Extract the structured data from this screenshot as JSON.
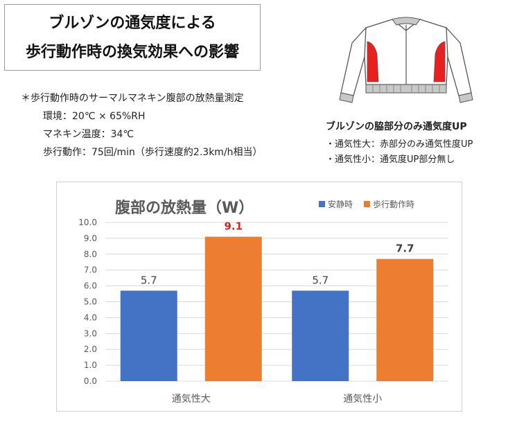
{
  "header": {
    "title_line1": "ブルゾンの通気度による",
    "title_line2": "歩行動作時の換気効果への影響"
  },
  "conditions": {
    "heading": "＊歩行動作時のサーマルマネキン腹部の放熱量測定",
    "environment": "環境：20℃ × 65%RH",
    "mannequin_temp": "マネキン温度：34℃",
    "walking": "歩行動作：75回/min（歩行速度約2.3km/h相当）"
  },
  "jacket_info": {
    "title": "ブルゾンの脇部分のみ通気度UP",
    "bullets": [
      "・通気性大：赤部分のみ通気性度UP",
      "・通気性小：通気度UP部分無し"
    ],
    "highlight_color": "#e8201f"
  },
  "chart_data": {
    "type": "bar",
    "title": "腹部の放熱量（W）",
    "categories": [
      "通気性大",
      "通気性小"
    ],
    "series": [
      {
        "name": "安静時",
        "values": [
          5.7,
          5.7
        ],
        "color": "#4472c4",
        "labels": [
          "5.7",
          "5.7"
        ]
      },
      {
        "name": "歩行動作時",
        "values": [
          9.1,
          7.7
        ],
        "color": "#ed7d31",
        "labels": [
          "9.1",
          "7.7"
        ]
      }
    ],
    "ylim": [
      0,
      10
    ],
    "yticks": [
      "0.0",
      "1.0",
      "2.0",
      "3.0",
      "4.0",
      "5.0",
      "6.0",
      "7.0",
      "8.0",
      "9.0",
      "10.0"
    ],
    "grid": true,
    "legend": "top-right",
    "emphasis_label_color": "#e0201c"
  }
}
